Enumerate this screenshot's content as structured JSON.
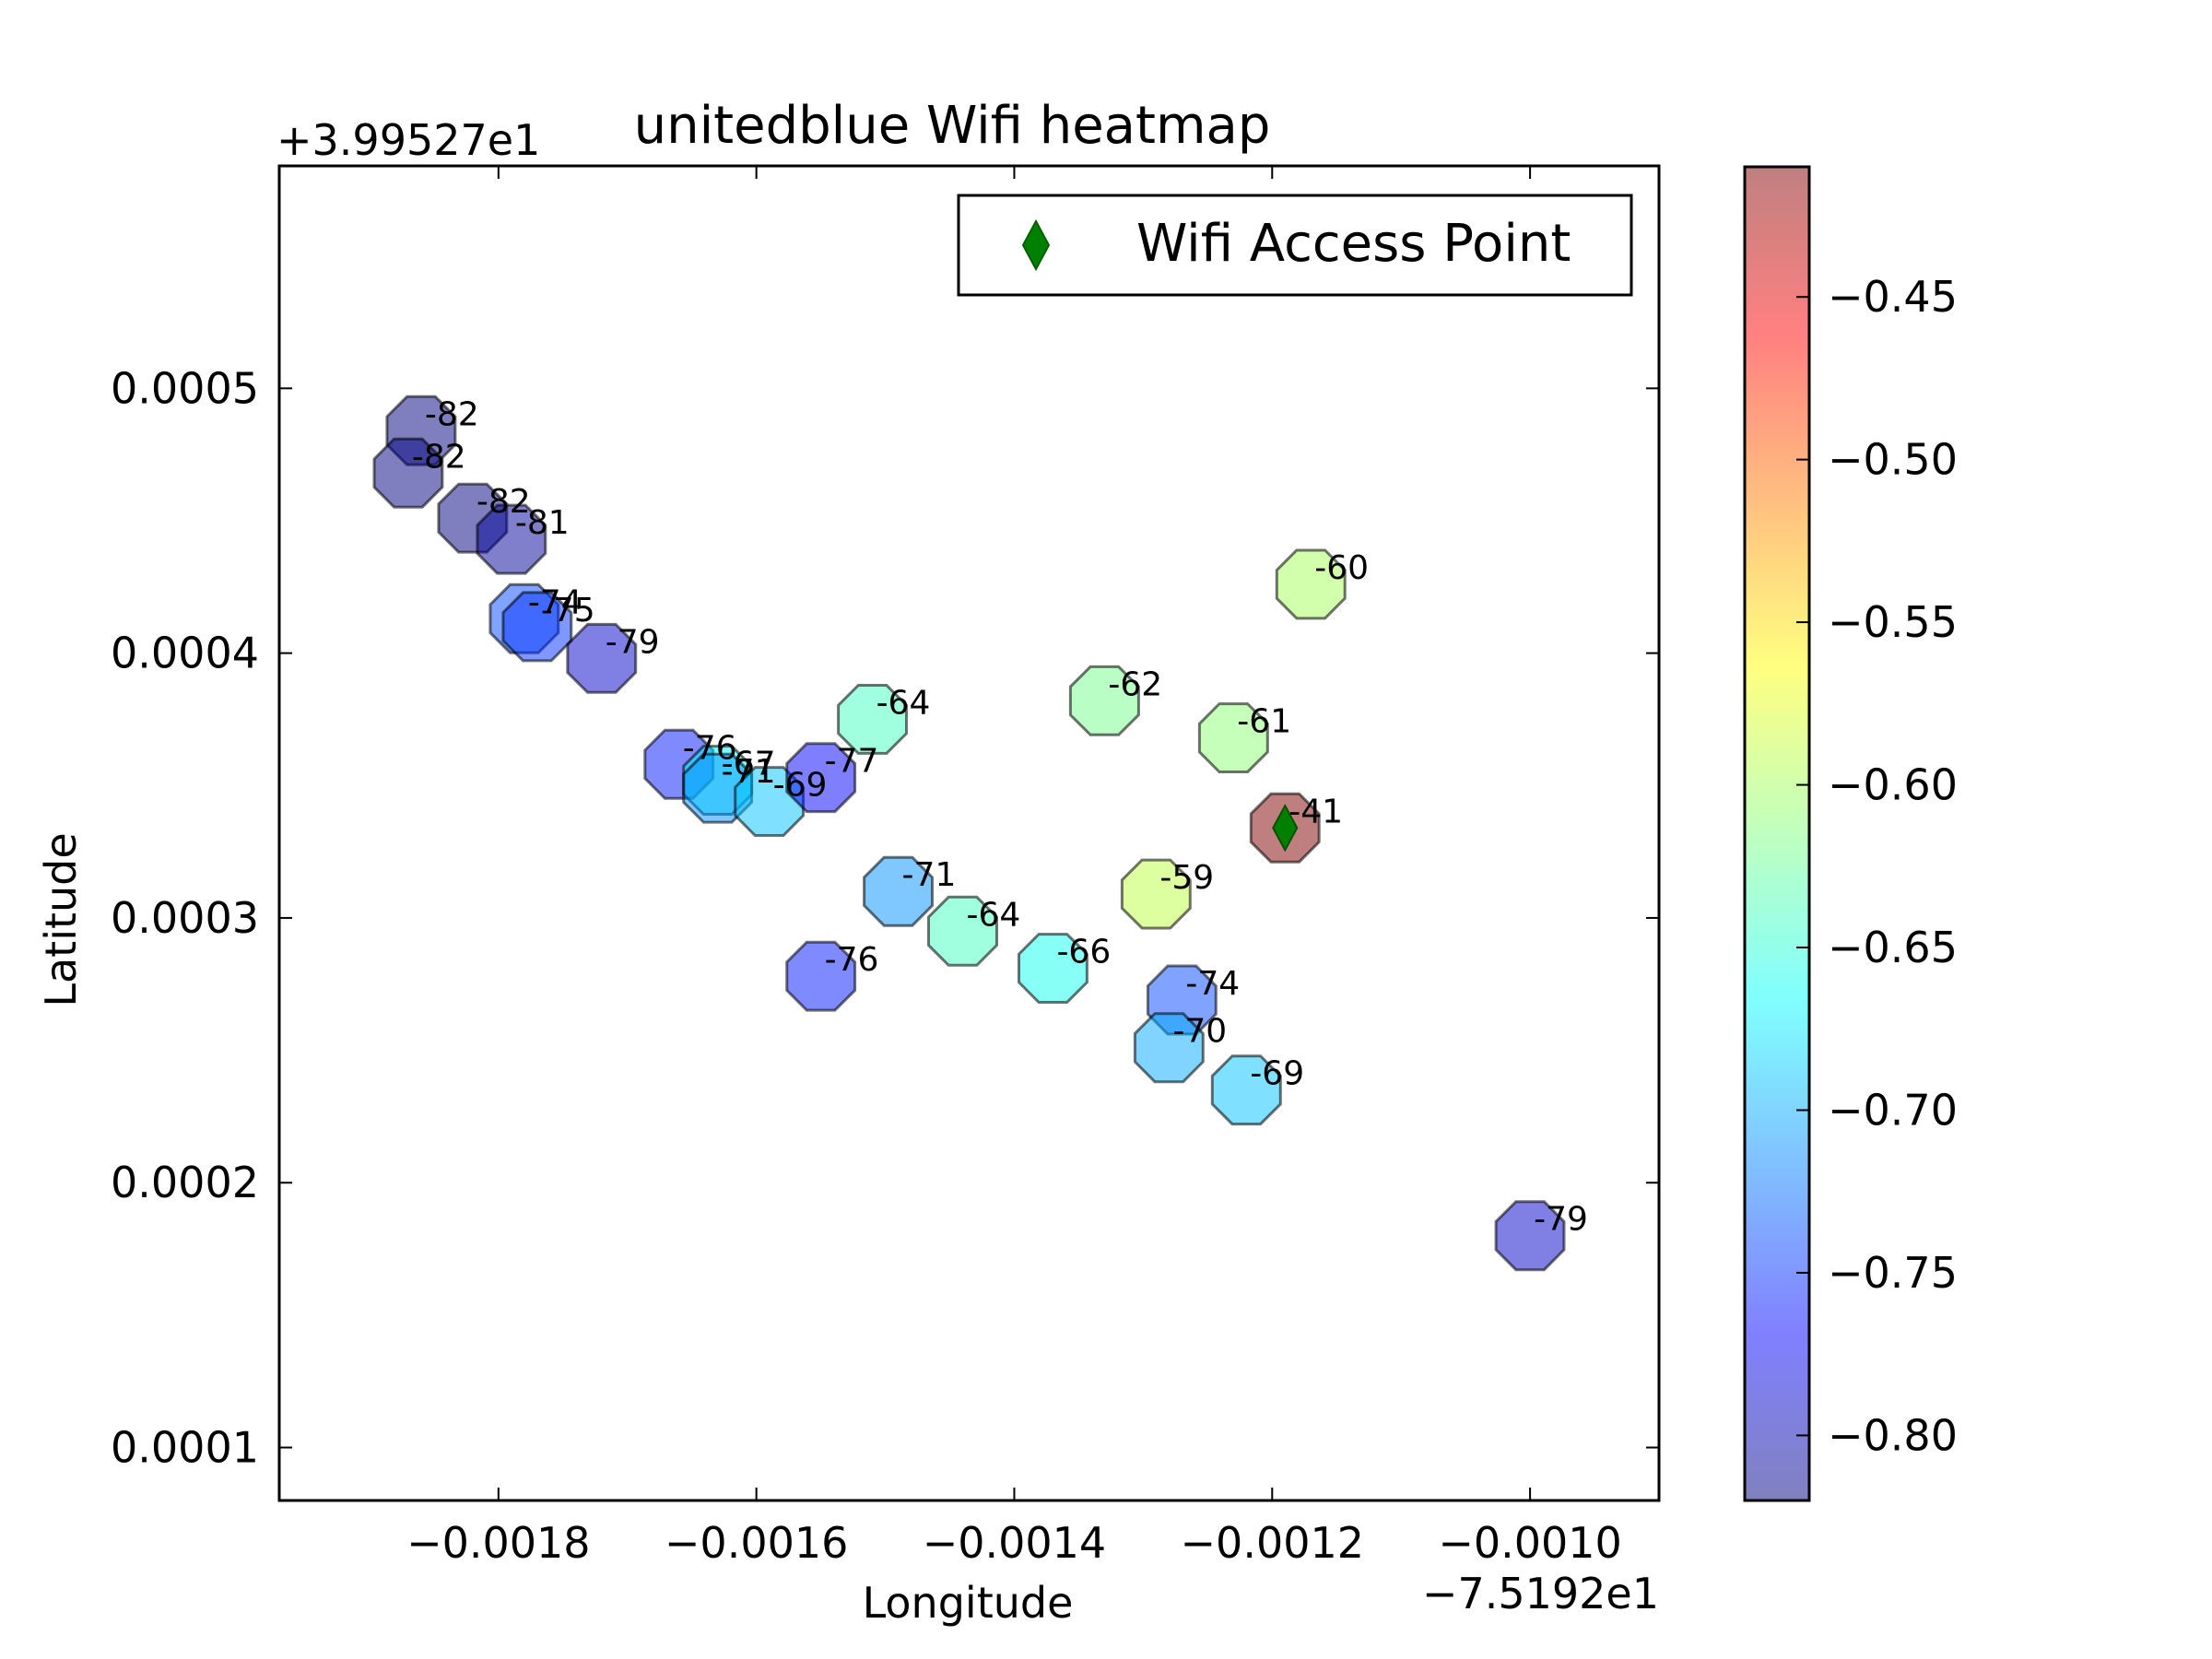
{
  "chart_data": {
    "type": "scatter",
    "title": "unitedblue Wifi heatmap",
    "xlabel": "Longitude",
    "ylabel": "Latitude",
    "x_offset_label": "−7.5192e1",
    "y_offset_label": "+3.99527e1",
    "xlim": [
      -0.00197,
      -0.0009
    ],
    "ylim": [
      8e-05,
      0.000584
    ],
    "xticks": [
      -0.0018,
      -0.0016,
      -0.0014,
      -0.0012,
      -0.001
    ],
    "xtick_labels": [
      "−0.0018",
      "−0.0016",
      "−0.0014",
      "−0.0012",
      "−0.0010"
    ],
    "yticks": [
      0.0001,
      0.0002,
      0.0003,
      0.0004,
      0.0005
    ],
    "ytick_labels": [
      "0.0001",
      "0.0002",
      "0.0003",
      "0.0004",
      "0.0005"
    ],
    "grid": false,
    "legend": {
      "placement": "upper-right",
      "entries": [
        "Wifi Access Point"
      ]
    },
    "colormap": "jet",
    "colorbar": {
      "range": [
        -0.82,
        -0.41
      ],
      "ticks": [
        -0.45,
        -0.5,
        -0.55,
        -0.6,
        -0.65,
        -0.7,
        -0.75,
        -0.8
      ],
      "tick_labels": [
        "−0.45",
        "−0.50",
        "−0.55",
        "−0.60",
        "−0.65",
        "−0.70",
        "−0.75",
        "−0.80"
      ]
    },
    "access_point": {
      "x": -0.00119,
      "y": 0.000334,
      "marker": "diamond",
      "color": "#008000"
    },
    "points": [
      {
        "x": -0.00186,
        "y": 0.000484,
        "label": "-82",
        "value": -82
      },
      {
        "x": -0.00187,
        "y": 0.000468,
        "label": "-82",
        "value": -82
      },
      {
        "x": -0.00182,
        "y": 0.000451,
        "label": "-82",
        "value": -82
      },
      {
        "x": -0.00179,
        "y": 0.000443,
        "label": "-81",
        "value": -81
      },
      {
        "x": -0.00178,
        "y": 0.000413,
        "label": "-74",
        "value": -74
      },
      {
        "x": -0.00177,
        "y": 0.00041,
        "label": "-75",
        "value": -75
      },
      {
        "x": -0.00172,
        "y": 0.000398,
        "label": "-79",
        "value": -79
      },
      {
        "x": -0.00166,
        "y": 0.000358,
        "label": "-76",
        "value": -76
      },
      {
        "x": -0.00163,
        "y": 0.000352,
        "label": "-67",
        "value": -67
      },
      {
        "x": -0.00163,
        "y": 0.000349,
        "label": "-71",
        "value": -71
      },
      {
        "x": -0.00159,
        "y": 0.000344,
        "label": "-69",
        "value": -69
      },
      {
        "x": -0.00155,
        "y": 0.000353,
        "label": "-77",
        "value": -77
      },
      {
        "x": -0.00151,
        "y": 0.000375,
        "label": "-64",
        "value": -64
      },
      {
        "x": -0.00149,
        "y": 0.00031,
        "label": "-71",
        "value": -71
      },
      {
        "x": -0.00144,
        "y": 0.000295,
        "label": "-64",
        "value": -64
      },
      {
        "x": -0.00155,
        "y": 0.000278,
        "label": "-76",
        "value": -76
      },
      {
        "x": -0.00137,
        "y": 0.000281,
        "label": "-66",
        "value": -66
      },
      {
        "x": -0.00133,
        "y": 0.000382,
        "label": "-62",
        "value": -62
      },
      {
        "x": -0.00129,
        "y": 0.000309,
        "label": "-59",
        "value": -59
      },
      {
        "x": -0.00127,
        "y": 0.000269,
        "label": "-74",
        "value": -74
      },
      {
        "x": -0.00128,
        "y": 0.000251,
        "label": "-70",
        "value": -70
      },
      {
        "x": -0.00122,
        "y": 0.000235,
        "label": "-69",
        "value": -69
      },
      {
        "x": -0.00123,
        "y": 0.000368,
        "label": "-61",
        "value": -61
      },
      {
        "x": -0.00117,
        "y": 0.000426,
        "label": "-60",
        "value": -60
      },
      {
        "x": -0.00119,
        "y": 0.000334,
        "label": "-41",
        "value": -41
      },
      {
        "x": -0.001,
        "y": 0.00018,
        "label": "-79",
        "value": -79
      }
    ]
  }
}
